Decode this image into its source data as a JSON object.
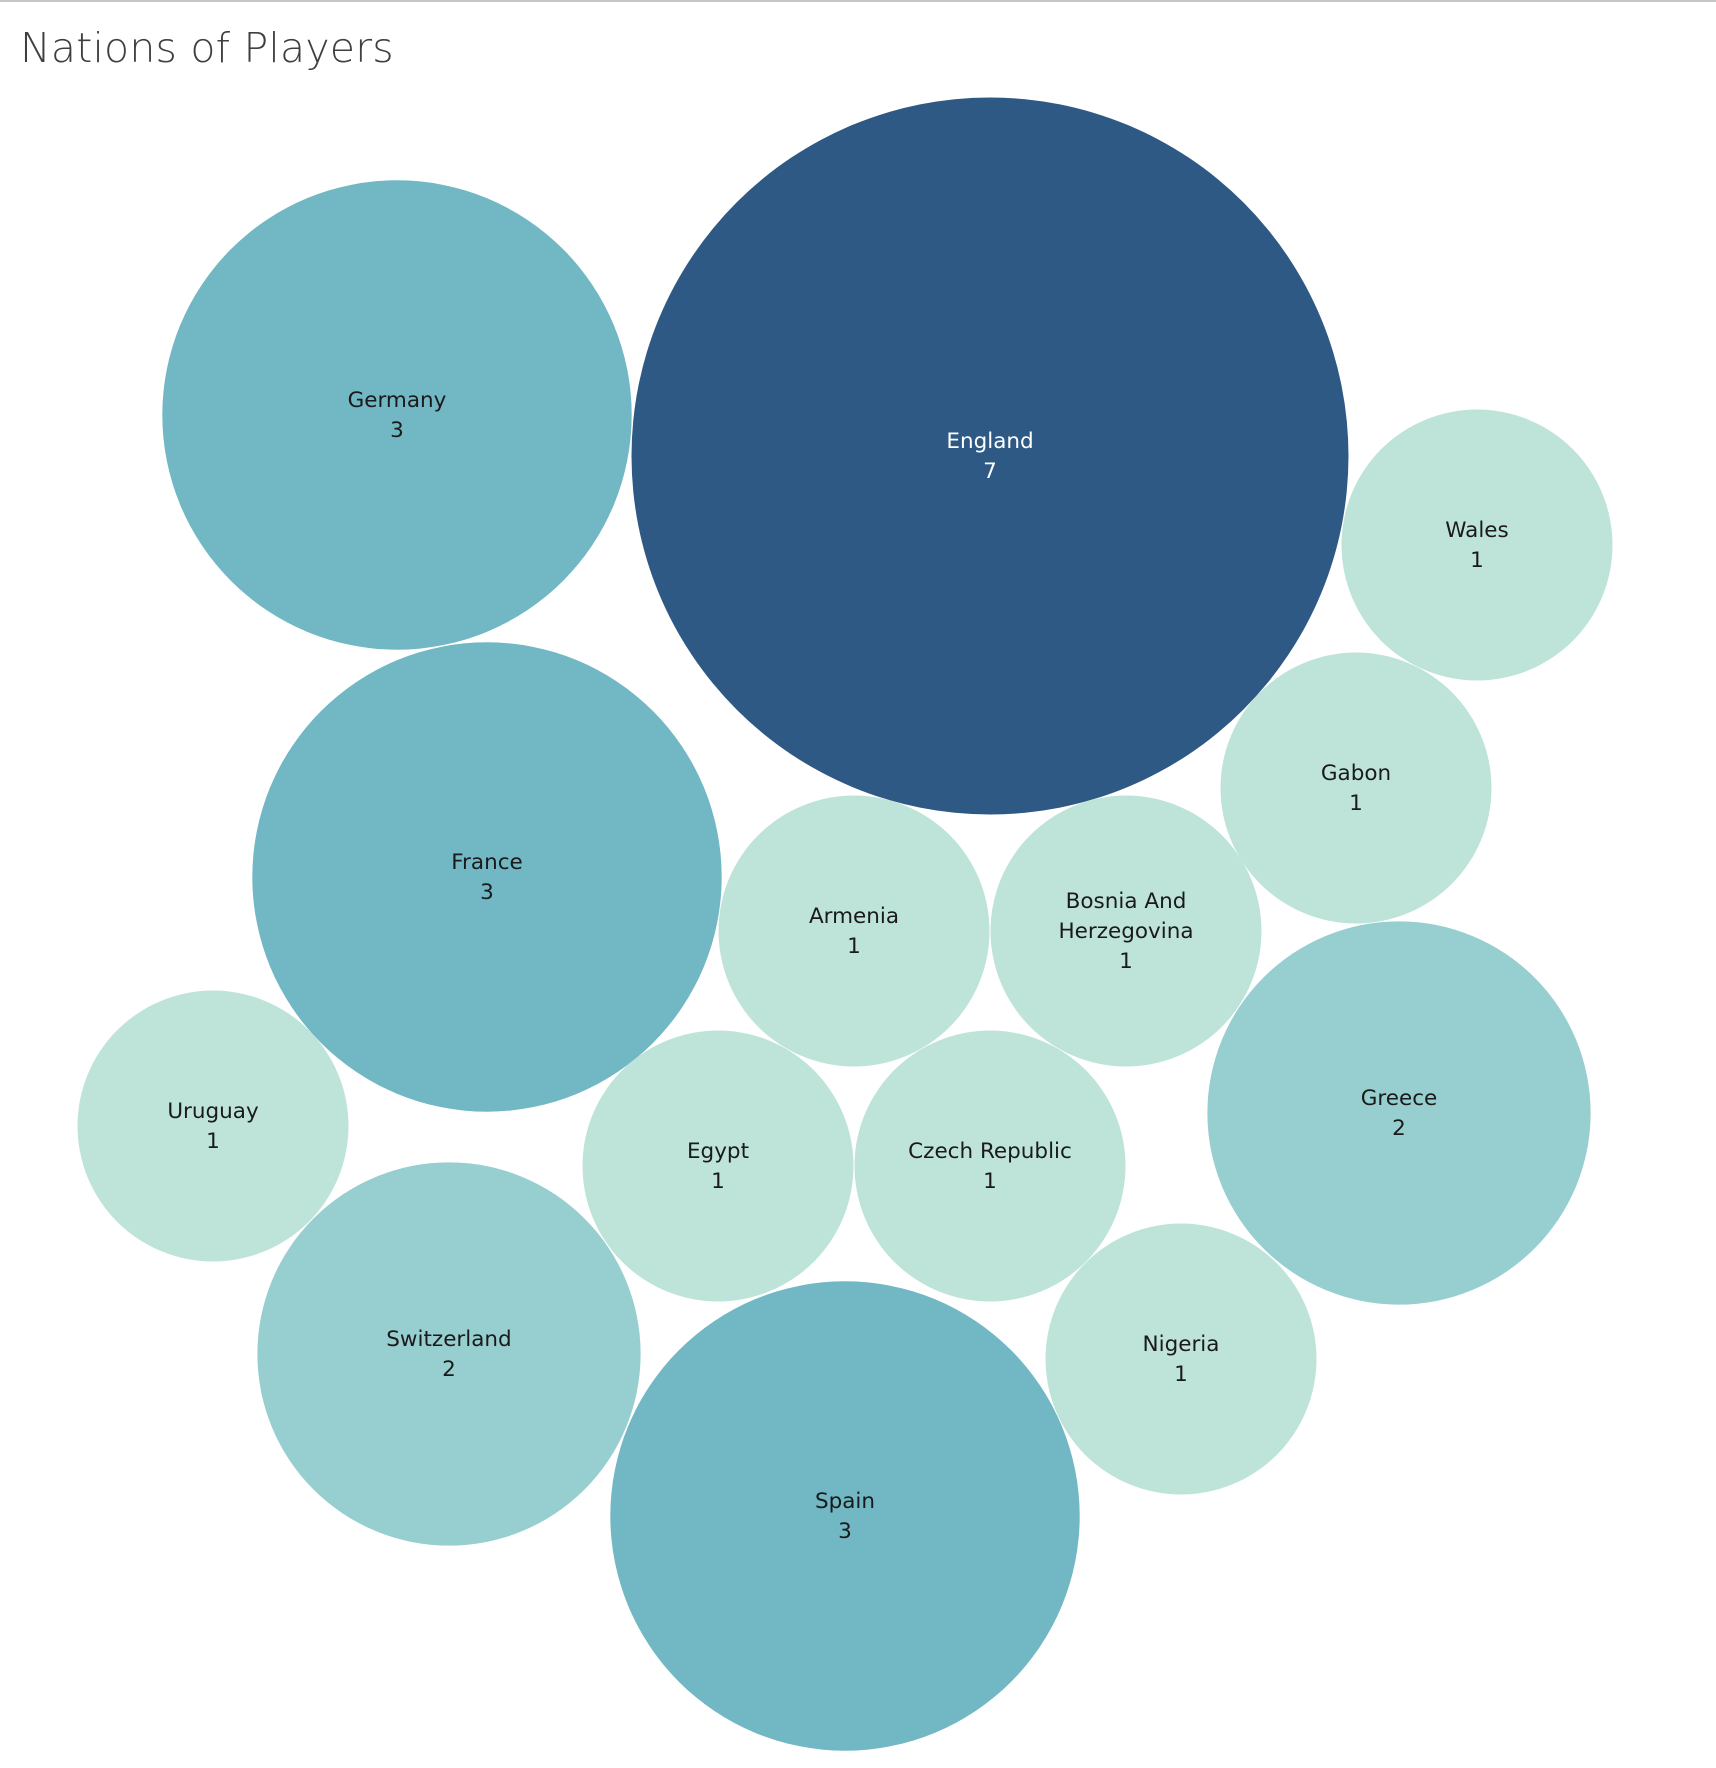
{
  "title": "Nations of Players",
  "colors": {
    "background": "#ffffff",
    "text_dark": "#1a1a1a",
    "text_light": "#ffffff"
  },
  "chart_data": {
    "type": "packed-bubble",
    "title": "Nations of Players",
    "measure_label": "",
    "color_scale": {
      "1": "#bee4da",
      "2": "#97ced0",
      "3": "#71b7c4",
      "7": "#2e5985"
    },
    "items": [
      {
        "name": "England",
        "lines": [
          "England"
        ],
        "value": 7
      },
      {
        "name": "Germany",
        "lines": [
          "Germany"
        ],
        "value": 3
      },
      {
        "name": "France",
        "lines": [
          "France"
        ],
        "value": 3
      },
      {
        "name": "Spain",
        "lines": [
          "Spain"
        ],
        "value": 3
      },
      {
        "name": "Greece",
        "lines": [
          "Greece"
        ],
        "value": 2
      },
      {
        "name": "Switzerland",
        "lines": [
          "Switzerland"
        ],
        "value": 2
      },
      {
        "name": "Wales",
        "lines": [
          "Wales"
        ],
        "value": 1
      },
      {
        "name": "Gabon",
        "lines": [
          "Gabon"
        ],
        "value": 1
      },
      {
        "name": "Armenia",
        "lines": [
          "Armenia"
        ],
        "value": 1
      },
      {
        "name": "Bosnia And Herzegovina",
        "lines": [
          "Bosnia And",
          "Herzegovina"
        ],
        "value": 1
      },
      {
        "name": "Uruguay",
        "lines": [
          "Uruguay"
        ],
        "value": 1
      },
      {
        "name": "Egypt",
        "lines": [
          "Egypt"
        ],
        "value": 1
      },
      {
        "name": "Czech Republic",
        "lines": [
          "Czech Republic"
        ],
        "value": 1
      },
      {
        "name": "Nigeria",
        "lines": [
          "Nigeria"
        ],
        "value": 1
      }
    ]
  }
}
